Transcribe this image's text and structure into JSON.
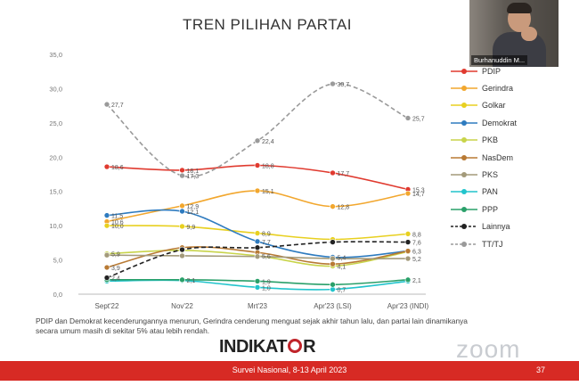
{
  "title": "TREN PILIHAN PARTAI",
  "caption": "PDIP dan Demokrat kecenderungannya menurun, Gerindra cenderung menguat sejak akhir tahun lalu, dan partai lain dinamikanya secara umum masih di sekitar 5% atau lebih rendah.",
  "logo": {
    "text_a": "INDIKAT",
    "text_b": "R"
  },
  "footer": {
    "text": "Survei Nasional, 8-13 April 2023",
    "page": "37"
  },
  "watermark": "zoom",
  "video": {
    "name": "Burhanuddin M..."
  },
  "chart_data": {
    "type": "line",
    "x": [
      "Sept'22",
      "Nov'22",
      "Mrt'23",
      "Apr'23 (LSI)",
      "Apr'23 (INDI)"
    ],
    "ylim": [
      0,
      35
    ],
    "yticks": [
      "0,0",
      "5,0",
      "10,0",
      "15,0",
      "20,0",
      "25,0",
      "30,0",
      "35,0"
    ],
    "grid": false,
    "legend_position": "right",
    "series": [
      {
        "name": "PDIP",
        "color": "#e03a2f",
        "dash": false,
        "values": [
          18.6,
          18.1,
          18.8,
          17.7,
          15.3
        ],
        "labels": [
          "18,6",
          "18,1",
          "18,8",
          "17,7",
          "15,3"
        ]
      },
      {
        "name": "Gerindra",
        "color": "#f2a72e",
        "dash": false,
        "values": [
          10.6,
          12.9,
          15.1,
          12.8,
          14.7
        ],
        "labels": [
          "10,6",
          "12,9",
          "15,1",
          "12,8",
          "14,7"
        ]
      },
      {
        "name": "Golkar",
        "color": "#e8d020",
        "dash": false,
        "values": [
          10.0,
          9.9,
          8.9,
          8.0,
          8.8
        ],
        "labels": [
          "10,0",
          "9,9",
          "8,9",
          "",
          "8,8"
        ]
      },
      {
        "name": "Demokrat",
        "color": "#2e7bbf",
        "dash": false,
        "values": [
          11.5,
          12.1,
          7.7,
          5.4,
          6.3
        ],
        "labels": [
          "11,5",
          "12,1",
          "7,7",
          "5,4",
          "6,3"
        ]
      },
      {
        "name": "PKB",
        "color": "#c8d44a",
        "dash": false,
        "values": [
          5.9,
          6.4,
          5.6,
          4.1,
          6.2
        ],
        "labels": [
          "5,9",
          "",
          "5,6",
          "4,1",
          ""
        ]
      },
      {
        "name": "NasDem",
        "color": "#b87a34",
        "dash": false,
        "values": [
          3.9,
          6.8,
          6.1,
          4.4,
          6.3
        ],
        "labels": [
          "3,9",
          "",
          "",
          "",
          ""
        ]
      },
      {
        "name": "PKS",
        "color": "#a39a7a",
        "dash": false,
        "values": [
          5.7,
          5.6,
          5.5,
          5.2,
          5.2
        ],
        "labels": [
          "",
          "",
          "",
          "",
          "5,2"
        ]
      },
      {
        "name": "PAN",
        "color": "#22c4cc",
        "dash": false,
        "values": [
          1.9,
          2.0,
          1.0,
          0.7,
          1.9
        ],
        "labels": [
          "",
          "",
          "1,0",
          "0,7",
          ""
        ]
      },
      {
        "name": "PPP",
        "color": "#2aa06a",
        "dash": false,
        "values": [
          2.1,
          2.1,
          1.9,
          1.4,
          2.1
        ],
        "labels": [
          "",
          "2,1",
          "1,9",
          "",
          "2,1"
        ]
      },
      {
        "name": "Lainnya",
        "color": "#222222",
        "dash": true,
        "values": [
          2.4,
          6.5,
          6.8,
          7.6,
          7.6
        ],
        "labels": [
          "2,4",
          "",
          "",
          "",
          "7,6"
        ]
      },
      {
        "name": "TT/TJ",
        "color": "#9a9a9a",
        "dash": true,
        "values": [
          27.7,
          17.3,
          22.4,
          30.7,
          25.7
        ],
        "labels": [
          "27,7",
          "17,3",
          "22,4",
          "30,7",
          "25,7"
        ]
      }
    ]
  }
}
